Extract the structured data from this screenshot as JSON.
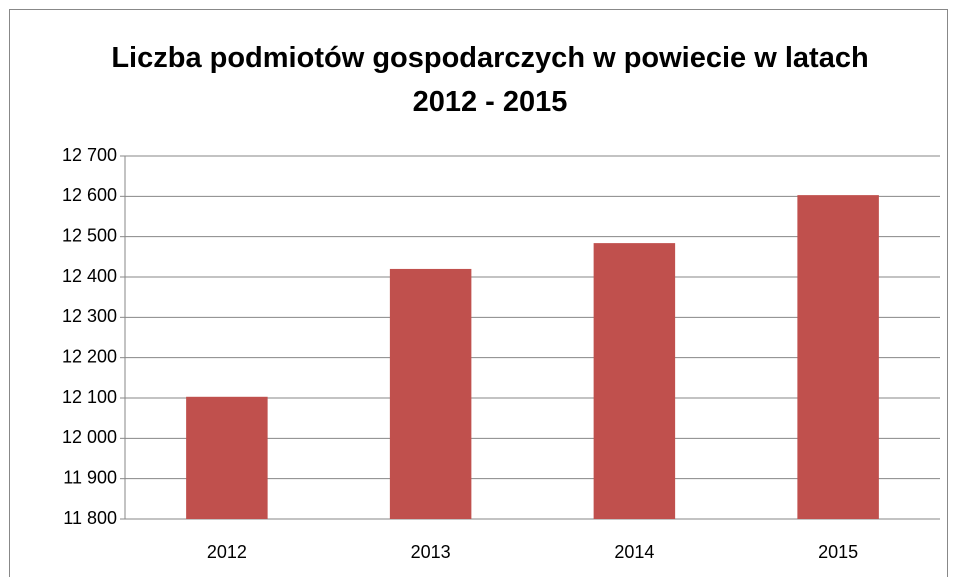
{
  "chart_data": {
    "type": "bar",
    "title": "Liczba podmiotów gospodarczych w powiecie w latach 2012 - 2015",
    "categories": [
      "2012",
      "2013",
      "2014",
      "2015"
    ],
    "values": [
      12103,
      12420,
      12484,
      12603
    ],
    "color": "#c0504d",
    "ylim": [
      11800,
      12700
    ],
    "yticks": [
      {
        "value": 11800,
        "label": "11 800"
      },
      {
        "value": 11900,
        "label": "11 900"
      },
      {
        "value": 12000,
        "label": "12 000"
      },
      {
        "value": 12100,
        "label": "12 100"
      },
      {
        "value": 12200,
        "label": "12 200"
      },
      {
        "value": 12300,
        "label": "12 300"
      },
      {
        "value": 12400,
        "label": "12 400"
      },
      {
        "value": 12500,
        "label": "12 500"
      },
      {
        "value": 12600,
        "label": "12 600"
      },
      {
        "value": 12700,
        "label": "12 700"
      }
    ],
    "grid": true
  }
}
